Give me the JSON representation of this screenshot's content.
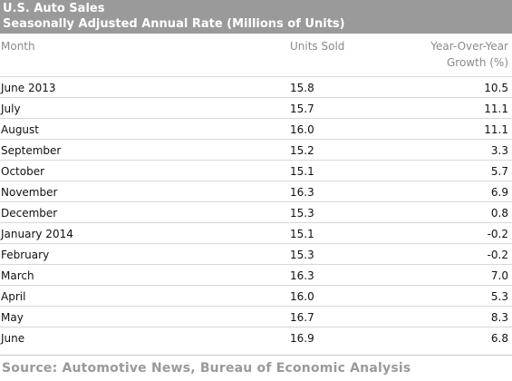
{
  "header": {
    "title": "U.S. Auto Sales",
    "subtitle": "Seasonally Adjusted Annual Rate (Millions of Units)"
  },
  "columns": {
    "month": "Month",
    "units": "Units Sold",
    "growth_line1": "Year-Over-Year",
    "growth_line2": "Growth (%)"
  },
  "chart_data": {
    "type": "table",
    "title": "U.S. Auto Sales",
    "subtitle": "Seasonally Adjusted Annual Rate (Millions of Units)",
    "columns": [
      "Month",
      "Units Sold",
      "Year-Over-Year Growth (%)"
    ],
    "rows": [
      {
        "month": "June 2013",
        "units": "15.8",
        "growth": "10.5"
      },
      {
        "month": "July",
        "units": "15.7",
        "growth": "11.1"
      },
      {
        "month": "August",
        "units": "16.0",
        "growth": "11.1"
      },
      {
        "month": "September",
        "units": "15.2",
        "growth": "3.3"
      },
      {
        "month": "October",
        "units": "15.1",
        "growth": "5.7"
      },
      {
        "month": "November",
        "units": "16.3",
        "growth": "6.9"
      },
      {
        "month": "December",
        "units": "15.3",
        "growth": "0.8"
      },
      {
        "month": "January 2014",
        "units": "15.1",
        "growth": "-0.2"
      },
      {
        "month": "February",
        "units": "15.3",
        "growth": "-0.2"
      },
      {
        "month": "March",
        "units": "16.3",
        "growth": "7.0"
      },
      {
        "month": "April",
        "units": "16.0",
        "growth": "5.3"
      },
      {
        "month": "May",
        "units": "16.7",
        "growth": "8.3"
      },
      {
        "month": "June",
        "units": "16.9",
        "growth": "6.8"
      }
    ]
  },
  "footer": {
    "source": "Source: Automotive News, Bureau of Economic Analysis"
  },
  "colors": {
    "title_bar": "#9a9a9a",
    "header_text": "#8a8a8a",
    "row_rule": "#d8d8d8",
    "source_text": "#9a9a9a"
  }
}
